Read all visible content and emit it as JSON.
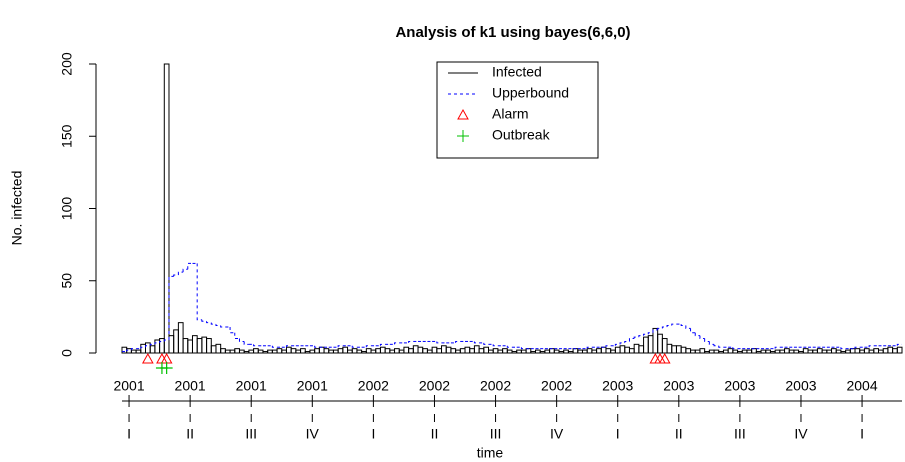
{
  "chart_data": {
    "type": "bar",
    "title": "Analysis of k1 using bayes(6,6,0)",
    "x_label": "time",
    "y_label": "No. infected",
    "xlim": [
      -0.5,
      165.5
    ],
    "ylim": [
      0,
      200
    ],
    "yticks": [
      0,
      50,
      100,
      150,
      200
    ],
    "xticks": [
      {
        "value": 1,
        "label": "2001"
      },
      {
        "value": 14,
        "label": "2001"
      },
      {
        "value": 27,
        "label": "2001"
      },
      {
        "value": 40,
        "label": "2001"
      },
      {
        "value": 53,
        "label": "2002"
      },
      {
        "value": 66,
        "label": "2002"
      },
      {
        "value": 79,
        "label": "2002"
      },
      {
        "value": 92,
        "label": "2002"
      },
      {
        "value": 105,
        "label": "2003"
      },
      {
        "value": 118,
        "label": "2003"
      },
      {
        "value": 131,
        "label": "2003"
      },
      {
        "value": 144,
        "label": "2003"
      },
      {
        "value": 157,
        "label": "2004"
      }
    ],
    "quarter_ticks": [
      {
        "value": 1,
        "label": "I"
      },
      {
        "value": 14,
        "label": "II"
      },
      {
        "value": 27,
        "label": "III"
      },
      {
        "value": 40,
        "label": "IV"
      },
      {
        "value": 53,
        "label": "I"
      },
      {
        "value": 66,
        "label": "II"
      },
      {
        "value": 79,
        "label": "III"
      },
      {
        "value": 92,
        "label": "IV"
      },
      {
        "value": 105,
        "label": "I"
      },
      {
        "value": 118,
        "label": "II"
      },
      {
        "value": 131,
        "label": "III"
      },
      {
        "value": 144,
        "label": "IV"
      },
      {
        "value": 157,
        "label": "I"
      }
    ],
    "series": [
      {
        "name": "Infected",
        "color": "#000000",
        "style": "solid",
        "values": [
          4,
          3,
          2,
          2,
          6,
          7,
          5,
          9,
          10,
          200,
          12,
          16,
          21,
          10,
          9,
          12,
          10,
          11,
          10,
          5,
          6,
          3,
          2,
          2,
          3,
          2,
          1,
          2,
          3,
          2,
          1,
          2,
          2,
          3,
          2,
          4,
          3,
          2,
          3,
          1,
          2,
          3,
          4,
          3,
          2,
          2,
          3,
          4,
          2,
          3,
          2,
          1,
          3,
          2,
          3,
          4,
          3,
          2,
          3,
          2,
          4,
          3,
          5,
          4,
          3,
          2,
          4,
          3,
          5,
          4,
          3,
          2,
          3,
          4,
          3,
          5,
          3,
          4,
          2,
          3,
          2,
          3,
          2,
          1,
          2,
          2,
          3,
          1,
          2,
          1,
          2,
          3,
          2,
          1,
          2,
          1,
          3,
          2,
          2,
          3,
          2,
          3,
          4,
          3,
          2,
          4,
          5,
          4,
          3,
          6,
          5,
          11,
          12,
          17,
          13,
          10,
          6,
          5,
          5,
          4,
          3,
          2,
          2,
          3,
          1,
          2,
          2,
          1,
          2,
          3,
          2,
          1,
          2,
          2,
          3,
          1,
          2,
          2,
          1,
          2,
          2,
          3,
          2,
          2,
          1,
          3,
          2,
          2,
          3,
          2,
          2,
          3,
          2,
          1,
          2,
          3,
          3,
          2,
          3,
          2,
          3,
          2,
          3,
          4,
          3,
          4
        ]
      },
      {
        "name": "Upperbound",
        "color": "#0000ff",
        "style": "dashed",
        "values": [
          1,
          2,
          3,
          3,
          4,
          5,
          6,
          7,
          8,
          9,
          53,
          54,
          56,
          58,
          62,
          62,
          23,
          22,
          21,
          20,
          19,
          18,
          18,
          14,
          10,
          8,
          6,
          6,
          5,
          5,
          5,
          5,
          4,
          4,
          4,
          5,
          5,
          5,
          5,
          5,
          5,
          4,
          4,
          4,
          4,
          4,
          5,
          5,
          5,
          4,
          4,
          4,
          5,
          5,
          5,
          6,
          6,
          6,
          7,
          7,
          7,
          8,
          8,
          8,
          8,
          8,
          8,
          7,
          7,
          7,
          7,
          8,
          8,
          8,
          8,
          7,
          7,
          6,
          6,
          5,
          5,
          5,
          4,
          4,
          4,
          3,
          3,
          3,
          3,
          3,
          3,
          3,
          3,
          3,
          3,
          3,
          3,
          3,
          3,
          4,
          4,
          4,
          4,
          5,
          5,
          6,
          7,
          8,
          10,
          11,
          12,
          13,
          14,
          16,
          17,
          18,
          19,
          20,
          20,
          19,
          17,
          14,
          12,
          10,
          8,
          6,
          5,
          4,
          4,
          4,
          3,
          3,
          3,
          3,
          3,
          3,
          3,
          3,
          3,
          4,
          4,
          4,
          4,
          4,
          4,
          4,
          4,
          4,
          4,
          4,
          4,
          4,
          4,
          3,
          3,
          3,
          4,
          4,
          4,
          5,
          5,
          5,
          5,
          5,
          5,
          6
        ]
      }
    ],
    "alarm": {
      "name": "Alarm",
      "color": "#ff0000",
      "weeks": [
        5,
        8,
        9,
        113,
        114,
        115
      ]
    },
    "outbreak": {
      "name": "Outbreak",
      "color": "#00c000",
      "weeks": [
        8,
        9
      ]
    }
  }
}
